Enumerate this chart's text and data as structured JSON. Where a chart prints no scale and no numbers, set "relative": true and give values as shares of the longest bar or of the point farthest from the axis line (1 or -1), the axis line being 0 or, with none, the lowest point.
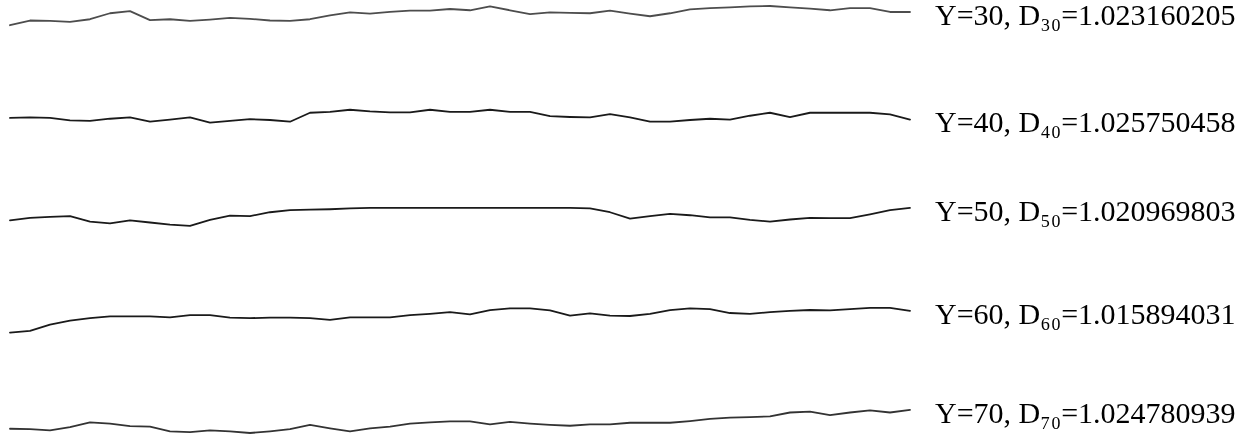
{
  "chart_data": {
    "type": "line",
    "relative": true,
    "categories": [
      null,
      null,
      null,
      null,
      null,
      null,
      null,
      null,
      null,
      null,
      null,
      null,
      null,
      null,
      null,
      null,
      null,
      null,
      null,
      null,
      null,
      null,
      null,
      null,
      null,
      null,
      null,
      null,
      null,
      null,
      null,
      null,
      null,
      null,
      null,
      null,
      null,
      null,
      null,
      null,
      null,
      null,
      null,
      null,
      null,
      null
    ],
    "series": [
      {
        "name": "Y=30, D₃₀=1.023160205",
        "color": "#4d4d4d",
        "values": [
          0.955,
          0.966,
          0.965,
          0.963,
          0.969,
          0.983,
          0.988,
          0.967,
          0.969,
          0.965,
          0.968,
          0.972,
          0.97,
          0.966,
          0.965,
          0.969,
          0.978,
          0.985,
          0.982,
          0.986,
          0.989,
          0.989,
          0.993,
          0.99,
          0.999,
          0.99,
          0.981,
          0.985,
          0.984,
          0.983,
          0.989,
          0.982,
          0.976,
          0.983,
          0.992,
          0.995,
          0.997,
          0.999,
          1,
          0.997,
          0.994,
          0.99,
          0.995,
          0.995,
          0.986,
          0.986
        ]
      },
      {
        "name": "Y=40, D₄₀=1.025750458",
        "color": "#1a1a1a",
        "values": [
          0.738,
          0.739,
          0.738,
          0.732,
          0.731,
          0.736,
          0.739,
          0.729,
          0.734,
          0.739,
          0.727,
          0.731,
          0.735,
          0.733,
          0.729,
          0.75,
          0.752,
          0.757,
          0.753,
          0.751,
          0.751,
          0.757,
          0.752,
          0.752,
          0.757,
          0.752,
          0.752,
          0.742,
          0.74,
          0.739,
          0.747,
          0.739,
          0.729,
          0.729,
          0.733,
          0.736,
          0.734,
          0.743,
          0.75,
          0.74,
          0.75,
          0.75,
          0.75,
          0.75,
          0.746,
          0.734
        ]
      },
      {
        "name": "Y=50, D₅₀=1.020969803",
        "color": "#1a1a1a",
        "values": [
          0.498,
          0.504,
          0.506,
          0.508,
          0.495,
          0.491,
          0.498,
          0.493,
          0.488,
          0.485,
          0.499,
          0.509,
          0.508,
          0.517,
          0.522,
          0.523,
          0.524,
          0.526,
          0.527,
          0.527,
          0.527,
          0.527,
          0.527,
          0.527,
          0.527,
          0.527,
          0.527,
          0.527,
          0.527,
          0.526,
          0.517,
          0.502,
          0.508,
          0.513,
          0.51,
          0.505,
          0.505,
          0.499,
          0.495,
          0.5,
          0.504,
          0.503,
          0.503,
          0.512,
          0.522,
          0.527
        ]
      },
      {
        "name": "Y=60, D₆₀=1.015894031",
        "color": "#1a1a1a",
        "values": [
          0.235,
          0.239,
          0.254,
          0.263,
          0.269,
          0.273,
          0.273,
          0.273,
          0.271,
          0.276,
          0.276,
          0.27,
          0.269,
          0.27,
          0.27,
          0.269,
          0.265,
          0.271,
          0.271,
          0.271,
          0.276,
          0.279,
          0.283,
          0.278,
          0.288,
          0.292,
          0.292,
          0.287,
          0.275,
          0.28,
          0.275,
          0.274,
          0.279,
          0.288,
          0.292,
          0.29,
          0.281,
          0.279,
          0.283,
          0.286,
          0.288,
          0.287,
          0.29,
          0.293,
          0.293,
          0.286
        ]
      },
      {
        "name": "Y=70, D₇₀=1.024780939",
        "color": "#333333",
        "values": [
          0.01,
          0.009,
          0.006,
          0.014,
          0.025,
          0.022,
          0.016,
          0.015,
          0.004,
          0.002,
          0.006,
          0.004,
          0,
          0.004,
          0.009,
          0.019,
          0.011,
          0.004,
          0.011,
          0.015,
          0.022,
          0.025,
          0.027,
          0.027,
          0.02,
          0.026,
          0.022,
          0.019,
          0.017,
          0.02,
          0.02,
          0.024,
          0.024,
          0.024,
          0.028,
          0.033,
          0.036,
          0.037,
          0.039,
          0.048,
          0.05,
          0.042,
          0.048,
          0.053,
          0.048,
          0.054
        ]
      }
    ]
  }
}
